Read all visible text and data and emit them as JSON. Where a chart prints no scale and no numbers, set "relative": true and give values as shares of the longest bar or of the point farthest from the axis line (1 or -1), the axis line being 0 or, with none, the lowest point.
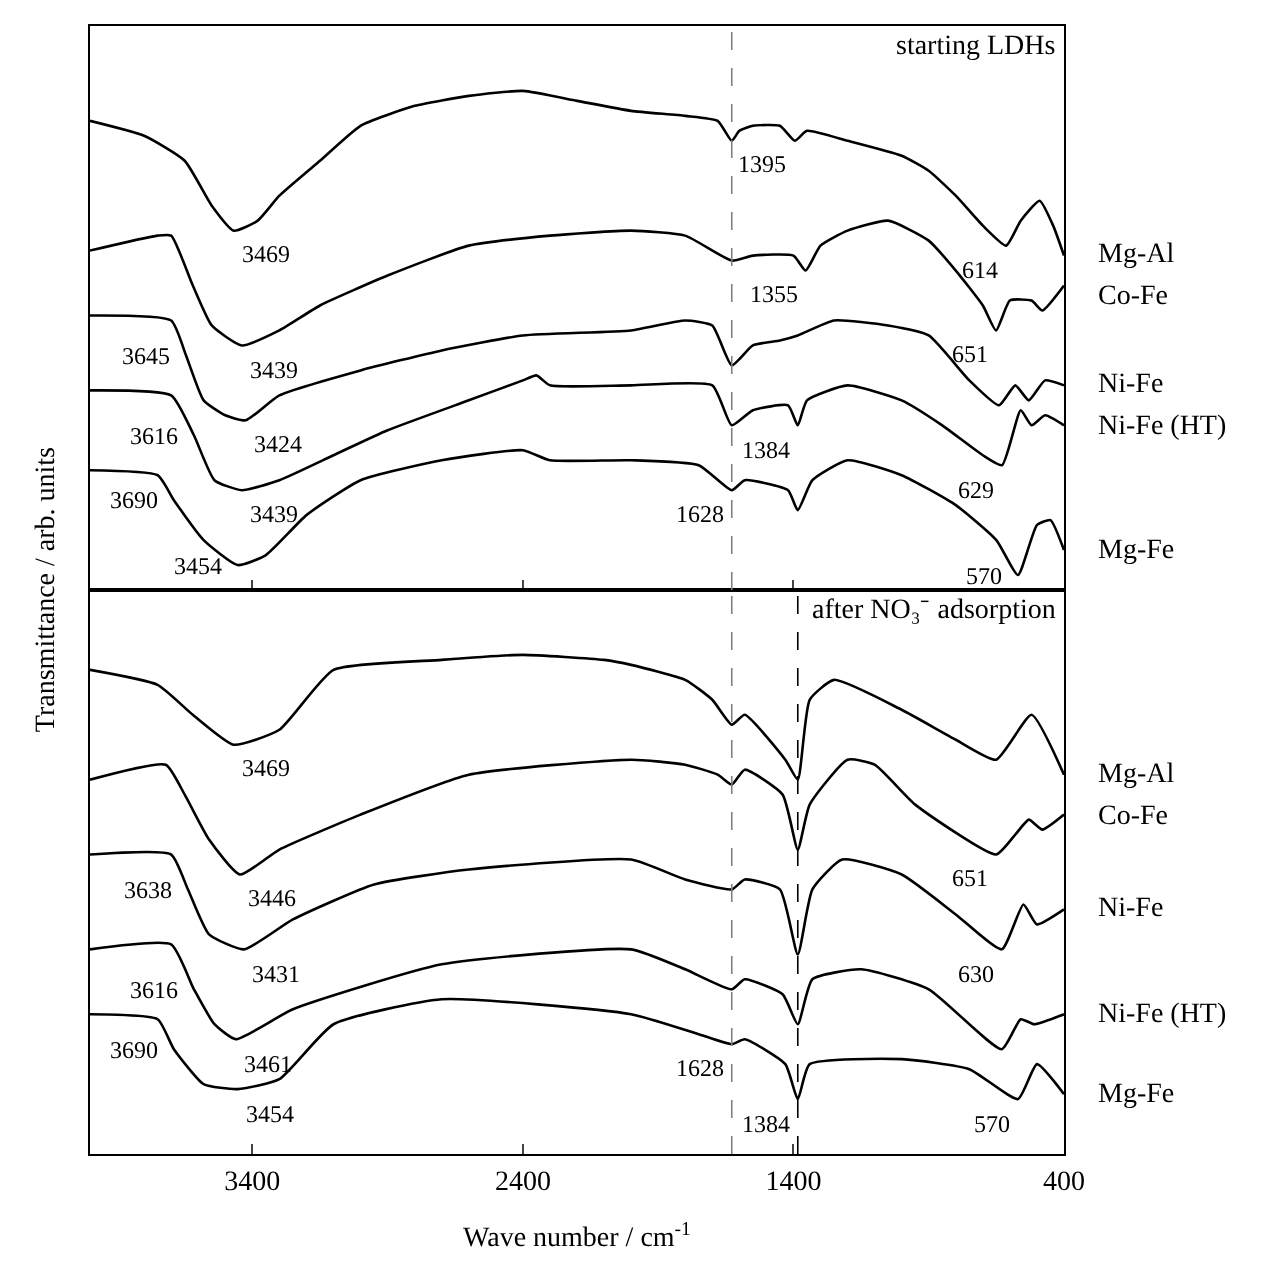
{
  "chart_data": [
    {
      "type": "line",
      "relative": true,
      "ylabel": "Transmittance / arb. units",
      "xlim": [
        4000,
        400
      ],
      "xticks": [
        3400,
        2400,
        1400,
        400
      ],
      "tick_labels": false,
      "series": [
        {
          "name": "Mg-Al",
          "color": "#000000",
          "x": [
            4000,
            3800,
            3650,
            3550,
            3469,
            3380,
            3300,
            3150,
            3000,
            2800,
            2600,
            2400,
            2200,
            2000,
            1800,
            1680,
            1628,
            1600,
            1550,
            1450,
            1395,
            1350,
            1200,
            1000,
            900,
            800,
            700,
            614,
            560,
            490,
            440,
            400
          ],
          "values": [
            0.94,
            0.91,
            0.86,
            0.77,
            0.72,
            0.74,
            0.79,
            0.86,
            0.93,
            0.97,
            0.99,
            1,
            0.98,
            0.96,
            0.95,
            0.94,
            0.9,
            0.92,
            0.93,
            0.93,
            0.9,
            0.92,
            0.9,
            0.87,
            0.84,
            0.79,
            0.73,
            0.69,
            0.74,
            0.78,
            0.73,
            0.67
          ]
        },
        {
          "name": "Co-Fe",
          "color": "#000000",
          "x": [
            4000,
            3750,
            3700,
            3620,
            3550,
            3439,
            3300,
            3150,
            2900,
            2600,
            2300,
            2000,
            1800,
            1628,
            1550,
            1400,
            1355,
            1300,
            1200,
            1050,
            900,
            800,
            700,
            651,
            600,
            520,
            480,
            400
          ],
          "values": [
            0.68,
            0.71,
            0.71,
            0.61,
            0.53,
            0.49,
            0.52,
            0.57,
            0.63,
            0.69,
            0.71,
            0.72,
            0.71,
            0.66,
            0.67,
            0.67,
            0.64,
            0.69,
            0.72,
            0.74,
            0.7,
            0.64,
            0.57,
            0.52,
            0.58,
            0.58,
            0.56,
            0.61
          ]
        },
        {
          "name": "Ni-Fe",
          "color": "#000000",
          "x": [
            4000,
            3700,
            3645,
            3580,
            3500,
            3424,
            3300,
            3000,
            2700,
            2400,
            2000,
            1800,
            1700,
            1628,
            1550,
            1450,
            1384,
            1250,
            1050,
            900,
            750,
            640,
            580,
            530,
            470,
            400
          ],
          "values": [
            0.55,
            0.54,
            0.47,
            0.38,
            0.35,
            0.34,
            0.39,
            0.44,
            0.48,
            0.51,
            0.52,
            0.54,
            0.53,
            0.45,
            0.49,
            0.5,
            0.51,
            0.54,
            0.53,
            0.51,
            0.42,
            0.37,
            0.41,
            0.38,
            0.42,
            0.41
          ]
        },
        {
          "name": "Ni-Fe (HT)",
          "color": "#000000",
          "x": [
            4000,
            3700,
            3616,
            3540,
            3439,
            3300,
            3100,
            2900,
            2600,
            2400,
            2350,
            2300,
            2000,
            1700,
            1628,
            1550,
            1420,
            1384,
            1350,
            1200,
            1000,
            850,
            700,
            629,
            560,
            520,
            470,
            400
          ],
          "values": [
            0.4,
            0.39,
            0.31,
            0.22,
            0.2,
            0.22,
            0.27,
            0.32,
            0.38,
            0.42,
            0.43,
            0.41,
            0.41,
            0.41,
            0.33,
            0.36,
            0.37,
            0.33,
            0.38,
            0.41,
            0.38,
            0.33,
            0.27,
            0.25,
            0.36,
            0.33,
            0.35,
            0.33
          ]
        },
        {
          "name": "Mg-Fe",
          "color": "#000000",
          "x": [
            4000,
            3750,
            3690,
            3580,
            3454,
            3350,
            3200,
            3000,
            2700,
            2400,
            2300,
            2000,
            1750,
            1628,
            1580,
            1420,
            1384,
            1330,
            1200,
            1000,
            800,
            650,
            570,
            500,
            450,
            400
          ],
          "values": [
            0.24,
            0.23,
            0.18,
            0.1,
            0.05,
            0.07,
            0.15,
            0.22,
            0.26,
            0.28,
            0.26,
            0.26,
            0.25,
            0.2,
            0.22,
            0.2,
            0.16,
            0.22,
            0.26,
            0.23,
            0.17,
            0.1,
            0.03,
            0.13,
            0.14,
            0.08
          ]
        }
      ],
      "ref_lines": [
        {
          "axis": "x",
          "value": 1628,
          "line_style": "dashed",
          "color": "#808080"
        }
      ],
      "annotations": [
        "starting LDHs",
        {
          "text": "3469",
          "x": 3469,
          "y": 0.72
        },
        {
          "text": "3439",
          "x": 3439,
          "y": 0.49
        },
        {
          "text": "3645",
          "x": 3645,
          "y": 0.47
        },
        {
          "text": "3424",
          "x": 3424,
          "y": 0.34
        },
        {
          "text": "3616",
          "x": 3616,
          "y": 0.31
        },
        {
          "text": "3439",
          "x": 3439,
          "y": 0.2
        },
        {
          "text": "3690",
          "x": 3690,
          "y": 0.18
        },
        {
          "text": "3454",
          "x": 3454,
          "y": 0.05
        },
        {
          "text": "1395",
          "x": 1395,
          "y": 0.9
        },
        {
          "text": "1355",
          "x": 1355,
          "y": 0.64
        },
        {
          "text": "614",
          "x": 614,
          "y": 0.69
        },
        {
          "text": "651",
          "x": 651,
          "y": 0.52
        },
        {
          "text": "1384",
          "x": 1384,
          "y": 0.33
        },
        {
          "text": "629",
          "x": 629,
          "y": 0.25
        },
        {
          "text": "1628",
          "x": 1628,
          "y": 0.2
        },
        {
          "text": "570",
          "x": 570,
          "y": 0.03
        }
      ]
    },
    {
      "type": "line",
      "relative": true,
      "xlabel": "Wave number / cm$^{-1}$",
      "xlim": [
        4000,
        400
      ],
      "xticks": [
        3400,
        2400,
        1400,
        400
      ],
      "tick_labels": "x",
      "series": [
        {
          "name": "Mg-Al",
          "color": "#000000",
          "x": [
            4000,
            3750,
            3620,
            3469,
            3300,
            3100,
            2700,
            2400,
            2100,
            2000,
            1800,
            1700,
            1628,
            1580,
            1430,
            1384,
            1340,
            1250,
            1000,
            800,
            651,
            520,
            400
          ],
          "values": [
            0.97,
            0.94,
            0.88,
            0.82,
            0.85,
            0.97,
            0.99,
            1,
            0.99,
            0.98,
            0.95,
            0.91,
            0.86,
            0.88,
            0.79,
            0.75,
            0.91,
            0.95,
            0.89,
            0.83,
            0.79,
            0.88,
            0.76
          ]
        },
        {
          "name": "Co-Fe",
          "color": "#000000",
          "x": [
            4000,
            3720,
            3650,
            3560,
            3446,
            3300,
            3000,
            2600,
            2000,
            1800,
            1680,
            1628,
            1580,
            1440,
            1384,
            1340,
            1200,
            1100,
            950,
            651,
            580,
            530,
            480,
            400
          ],
          "values": [
            0.75,
            0.78,
            0.72,
            0.63,
            0.56,
            0.61,
            0.68,
            0.76,
            0.79,
            0.78,
            0.76,
            0.74,
            0.77,
            0.72,
            0.61,
            0.7,
            0.79,
            0.78,
            0.7,
            0.6,
            0.64,
            0.67,
            0.65,
            0.68
          ]
        },
        {
          "name": "Ni-Fe",
          "color": "#000000",
          "x": [
            4000,
            3700,
            3638,
            3560,
            3431,
            3250,
            2950,
            2600,
            2000,
            1800,
            1628,
            1580,
            1450,
            1384,
            1330,
            1220,
            1000,
            800,
            630,
            550,
            500,
            400
          ],
          "values": [
            0.6,
            0.6,
            0.53,
            0.44,
            0.41,
            0.47,
            0.54,
            0.57,
            0.59,
            0.55,
            0.53,
            0.55,
            0.53,
            0.4,
            0.53,
            0.59,
            0.56,
            0.48,
            0.41,
            0.5,
            0.46,
            0.49
          ]
        },
        {
          "name": "Ni-Fe (HT)",
          "color": "#000000",
          "x": [
            4000,
            3700,
            3616,
            3540,
            3461,
            3250,
            2700,
            2000,
            1800,
            1628,
            1580,
            1440,
            1384,
            1330,
            1150,
            900,
            630,
            560,
            510,
            400
          ],
          "values": [
            0.41,
            0.42,
            0.33,
            0.26,
            0.23,
            0.29,
            0.38,
            0.41,
            0.37,
            0.33,
            0.35,
            0.32,
            0.26,
            0.35,
            0.37,
            0.33,
            0.21,
            0.27,
            0.26,
            0.28
          ]
        },
        {
          "name": "Mg-Fe",
          "color": "#000000",
          "x": [
            4000,
            3750,
            3690,
            3580,
            3454,
            3300,
            3100,
            2700,
            2000,
            1750,
            1628,
            1580,
            1430,
            1384,
            1340,
            1000,
            750,
            570,
            500,
            400
          ],
          "values": [
            0.28,
            0.27,
            0.21,
            0.14,
            0.13,
            0.15,
            0.26,
            0.31,
            0.28,
            0.24,
            0.22,
            0.23,
            0.18,
            0.11,
            0.18,
            0.19,
            0.17,
            0.11,
            0.18,
            0.12
          ]
        }
      ],
      "ref_lines": [
        {
          "axis": "x",
          "value": 1628,
          "line_style": "dashed",
          "color": "#808080"
        },
        {
          "axis": "x",
          "value": 1384,
          "line_style": "dashed",
          "color": "#000000"
        }
      ],
      "annotations": [
        "after NO₃⁻ adsorption",
        {
          "text": "3469",
          "x": 3469,
          "y": 0.82
        },
        {
          "text": "3446",
          "x": 3446,
          "y": 0.56
        },
        {
          "text": "3638",
          "x": 3638,
          "y": 0.53
        },
        {
          "text": "3431",
          "x": 3431,
          "y": 0.41
        },
        {
          "text": "3616",
          "x": 3616,
          "y": 0.33
        },
        {
          "text": "3461",
          "x": 3461,
          "y": 0.23
        },
        {
          "text": "3690",
          "x": 3690,
          "y": 0.21
        },
        {
          "text": "3454",
          "x": 3454,
          "y": 0.13
        },
        {
          "text": "651",
          "x": 651,
          "y": 0.6
        },
        {
          "text": "630",
          "x": 630,
          "y": 0.41
        },
        {
          "text": "1628",
          "x": 1628,
          "y": 0.22
        },
        {
          "text": "1384",
          "x": 1384,
          "y": 0.11
        },
        {
          "text": "570",
          "x": 570,
          "y": 0.11
        }
      ]
    }
  ]
}
